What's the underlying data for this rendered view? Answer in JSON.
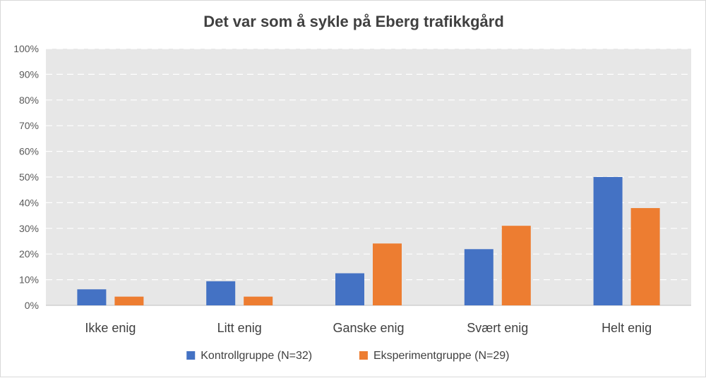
{
  "chart_data": {
    "type": "bar",
    "title": "Det var som å sykle på Eberg trafikkgård",
    "xlabel": "",
    "ylabel": "",
    "categories": [
      "Ikke enig",
      "Litt enig",
      "Ganske enig",
      "Svært enig",
      "Helt enig"
    ],
    "series": [
      {
        "name": "Kontrollgruppe (N=32)",
        "color": "#4472C4",
        "values": [
          6.25,
          9.4,
          12.5,
          21.9,
          50.0
        ]
      },
      {
        "name": "Eksperimentgruppe (N=29)",
        "color": "#ED7D31",
        "values": [
          3.4,
          3.4,
          24.1,
          31.0,
          37.9
        ]
      }
    ],
    "ylim": [
      0,
      100
    ],
    "yticks": [
      0,
      10,
      20,
      30,
      40,
      50,
      60,
      70,
      80,
      90,
      100
    ],
    "ytick_labels": [
      "0%",
      "10%",
      "20%",
      "30%",
      "40%",
      "50%",
      "60%",
      "70%",
      "80%",
      "90%",
      "100%"
    ],
    "grid": true,
    "legend_position": "bottom",
    "plot_background": "#E7E7E7"
  }
}
